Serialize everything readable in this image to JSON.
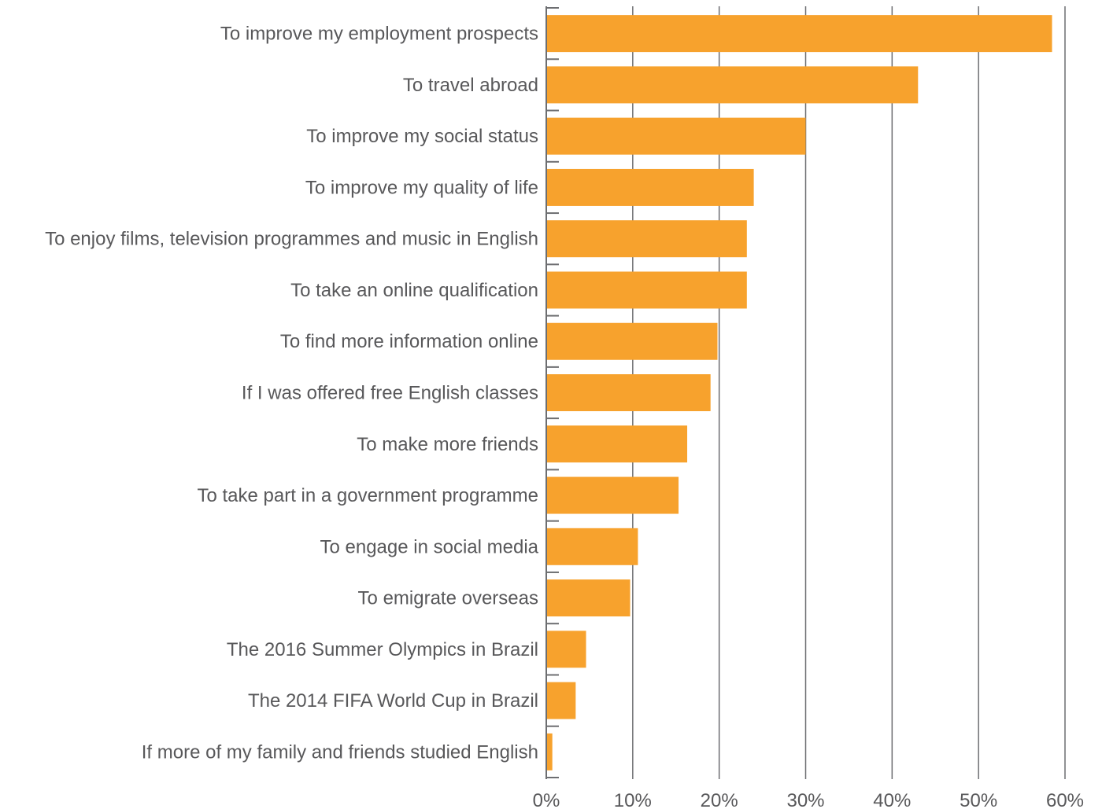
{
  "chart_data": {
    "type": "bar",
    "orientation": "horizontal",
    "categories": [
      "To improve my employment prospects",
      "To travel abroad",
      "To improve my social status",
      "To improve my quality of life",
      "To enjoy films, television programmes and music in English",
      "To take an online qualification",
      "To find more information online",
      "If I was offered free English classes",
      "To make more friends",
      "To take part in a government programme",
      "To engage in social media",
      "To emigrate overseas",
      "The 2016 Summer Olympics in Brazil",
      "The 2014 FIFA World Cup in Brazil",
      "If more of my family and friends studied English"
    ],
    "values": [
      58.5,
      43,
      30,
      24,
      23.2,
      23.2,
      19.8,
      19,
      16.3,
      15.3,
      10.6,
      9.7,
      4.6,
      3.4,
      0.7
    ],
    "xlim": [
      0,
      60
    ],
    "xticks": [
      0,
      10,
      20,
      30,
      40,
      50,
      60
    ],
    "xtick_labels": [
      "0%",
      "10%",
      "20%",
      "30%",
      "40%",
      "50%",
      "60%"
    ],
    "title": "",
    "xlabel": "",
    "ylabel": "",
    "grid": true,
    "legend": "none",
    "colors": {
      "bar": "#f7a22d",
      "text": "#58585a",
      "grid": "#6d6e71"
    }
  }
}
